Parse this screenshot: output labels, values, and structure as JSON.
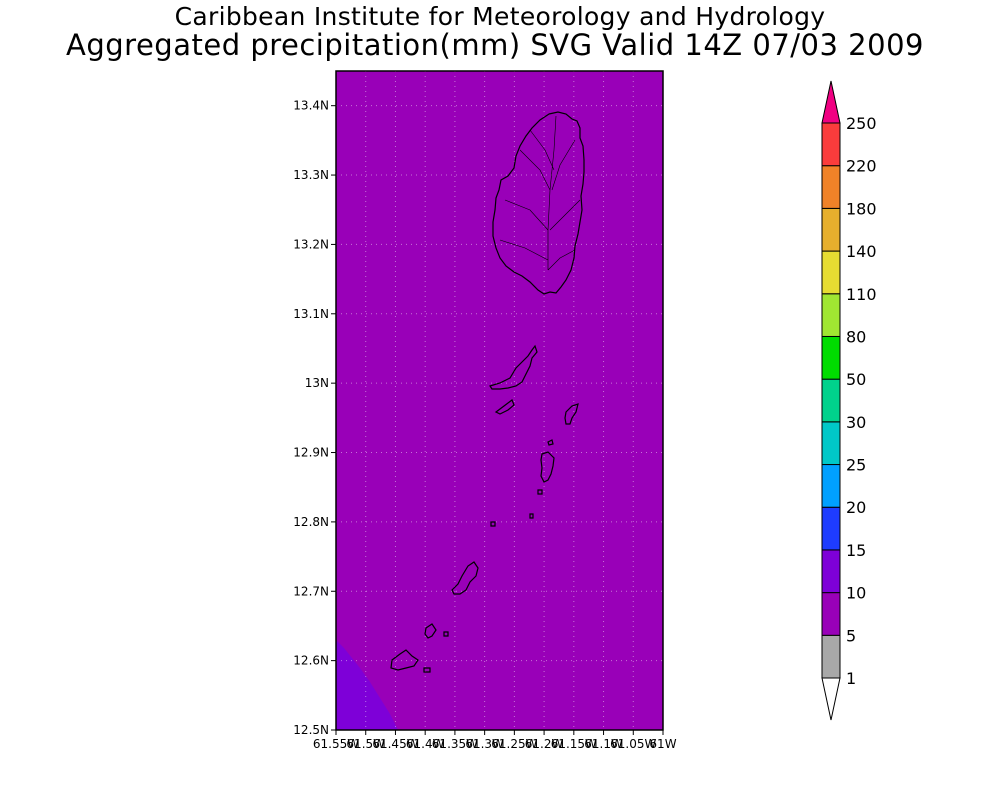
{
  "title": {
    "line1": "Caribbean Institute for Meteorology and Hydrology",
    "line2": "Aggregated precipitation(mm) SVG Valid 14Z 07/03 2009"
  },
  "map": {
    "background_color": "#9900b8",
    "corner_color": "#7e00d8",
    "lon_range": [
      -61.55,
      -61.0
    ],
    "lat_range": [
      12.5,
      13.45
    ],
    "lat_tick_labels": [
      "12.5N",
      "12.6N",
      "12.7N",
      "12.8N",
      "12.9N",
      "13N",
      "13.1N",
      "13.2N",
      "13.3N",
      "13.4N"
    ],
    "lon_tick_labels": [
      "61.55W",
      "61.5W",
      "61.45W",
      "61.4W",
      "61.35W",
      "61.3W",
      "61.25W",
      "61.2W",
      "61.15W",
      "61.1W",
      "61.05W",
      "61W"
    ]
  },
  "colorbar": {
    "labels": [
      "1",
      "5",
      "10",
      "15",
      "20",
      "25",
      "30",
      "50",
      "80",
      "110",
      "140",
      "180",
      "220",
      "250"
    ],
    "colors": [
      "#a8a8a8",
      "#9900b8",
      "#7e00d8",
      "#1e3cff",
      "#00a0ff",
      "#00c8c8",
      "#00d28c",
      "#00dc00",
      "#a0e632",
      "#e6dc32",
      "#e6af2d",
      "#f08228",
      "#fa3c3c",
      "#f00082"
    ]
  }
}
